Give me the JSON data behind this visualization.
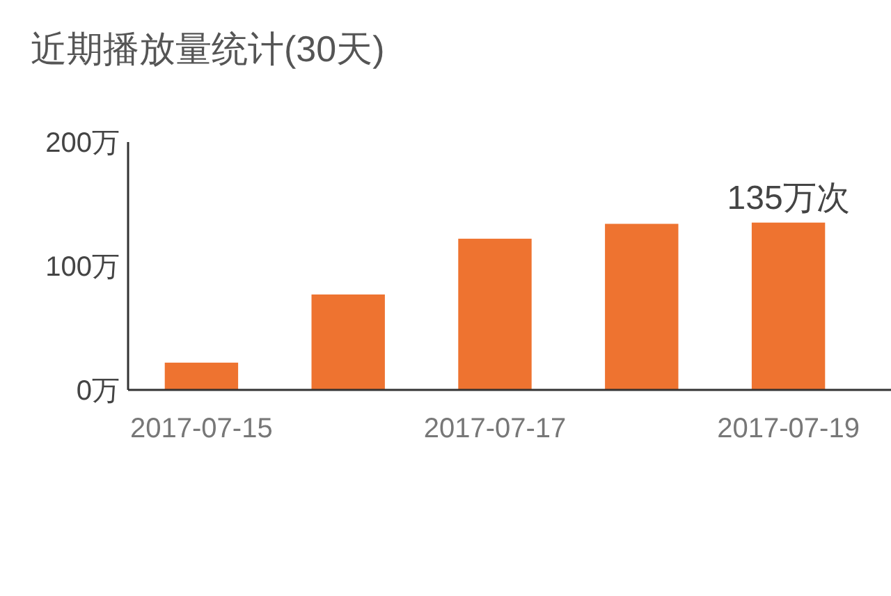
{
  "chart_data": {
    "type": "bar",
    "title": "近期播放量统计(30天)",
    "categories": [
      "2017-07-15",
      null,
      "2017-07-17",
      null,
      "2017-07-19"
    ],
    "values": [
      22,
      77,
      122,
      134,
      135
    ],
    "color": "#ee7330",
    "ylim": [
      0,
      200
    ],
    "yticks": [
      {
        "value": 0,
        "label": "0万"
      },
      {
        "value": 100,
        "label": "100万"
      },
      {
        "value": 200,
        "label": "200万"
      }
    ],
    "value_labels": [
      null,
      null,
      null,
      null,
      "135万次"
    ],
    "grid": false
  }
}
